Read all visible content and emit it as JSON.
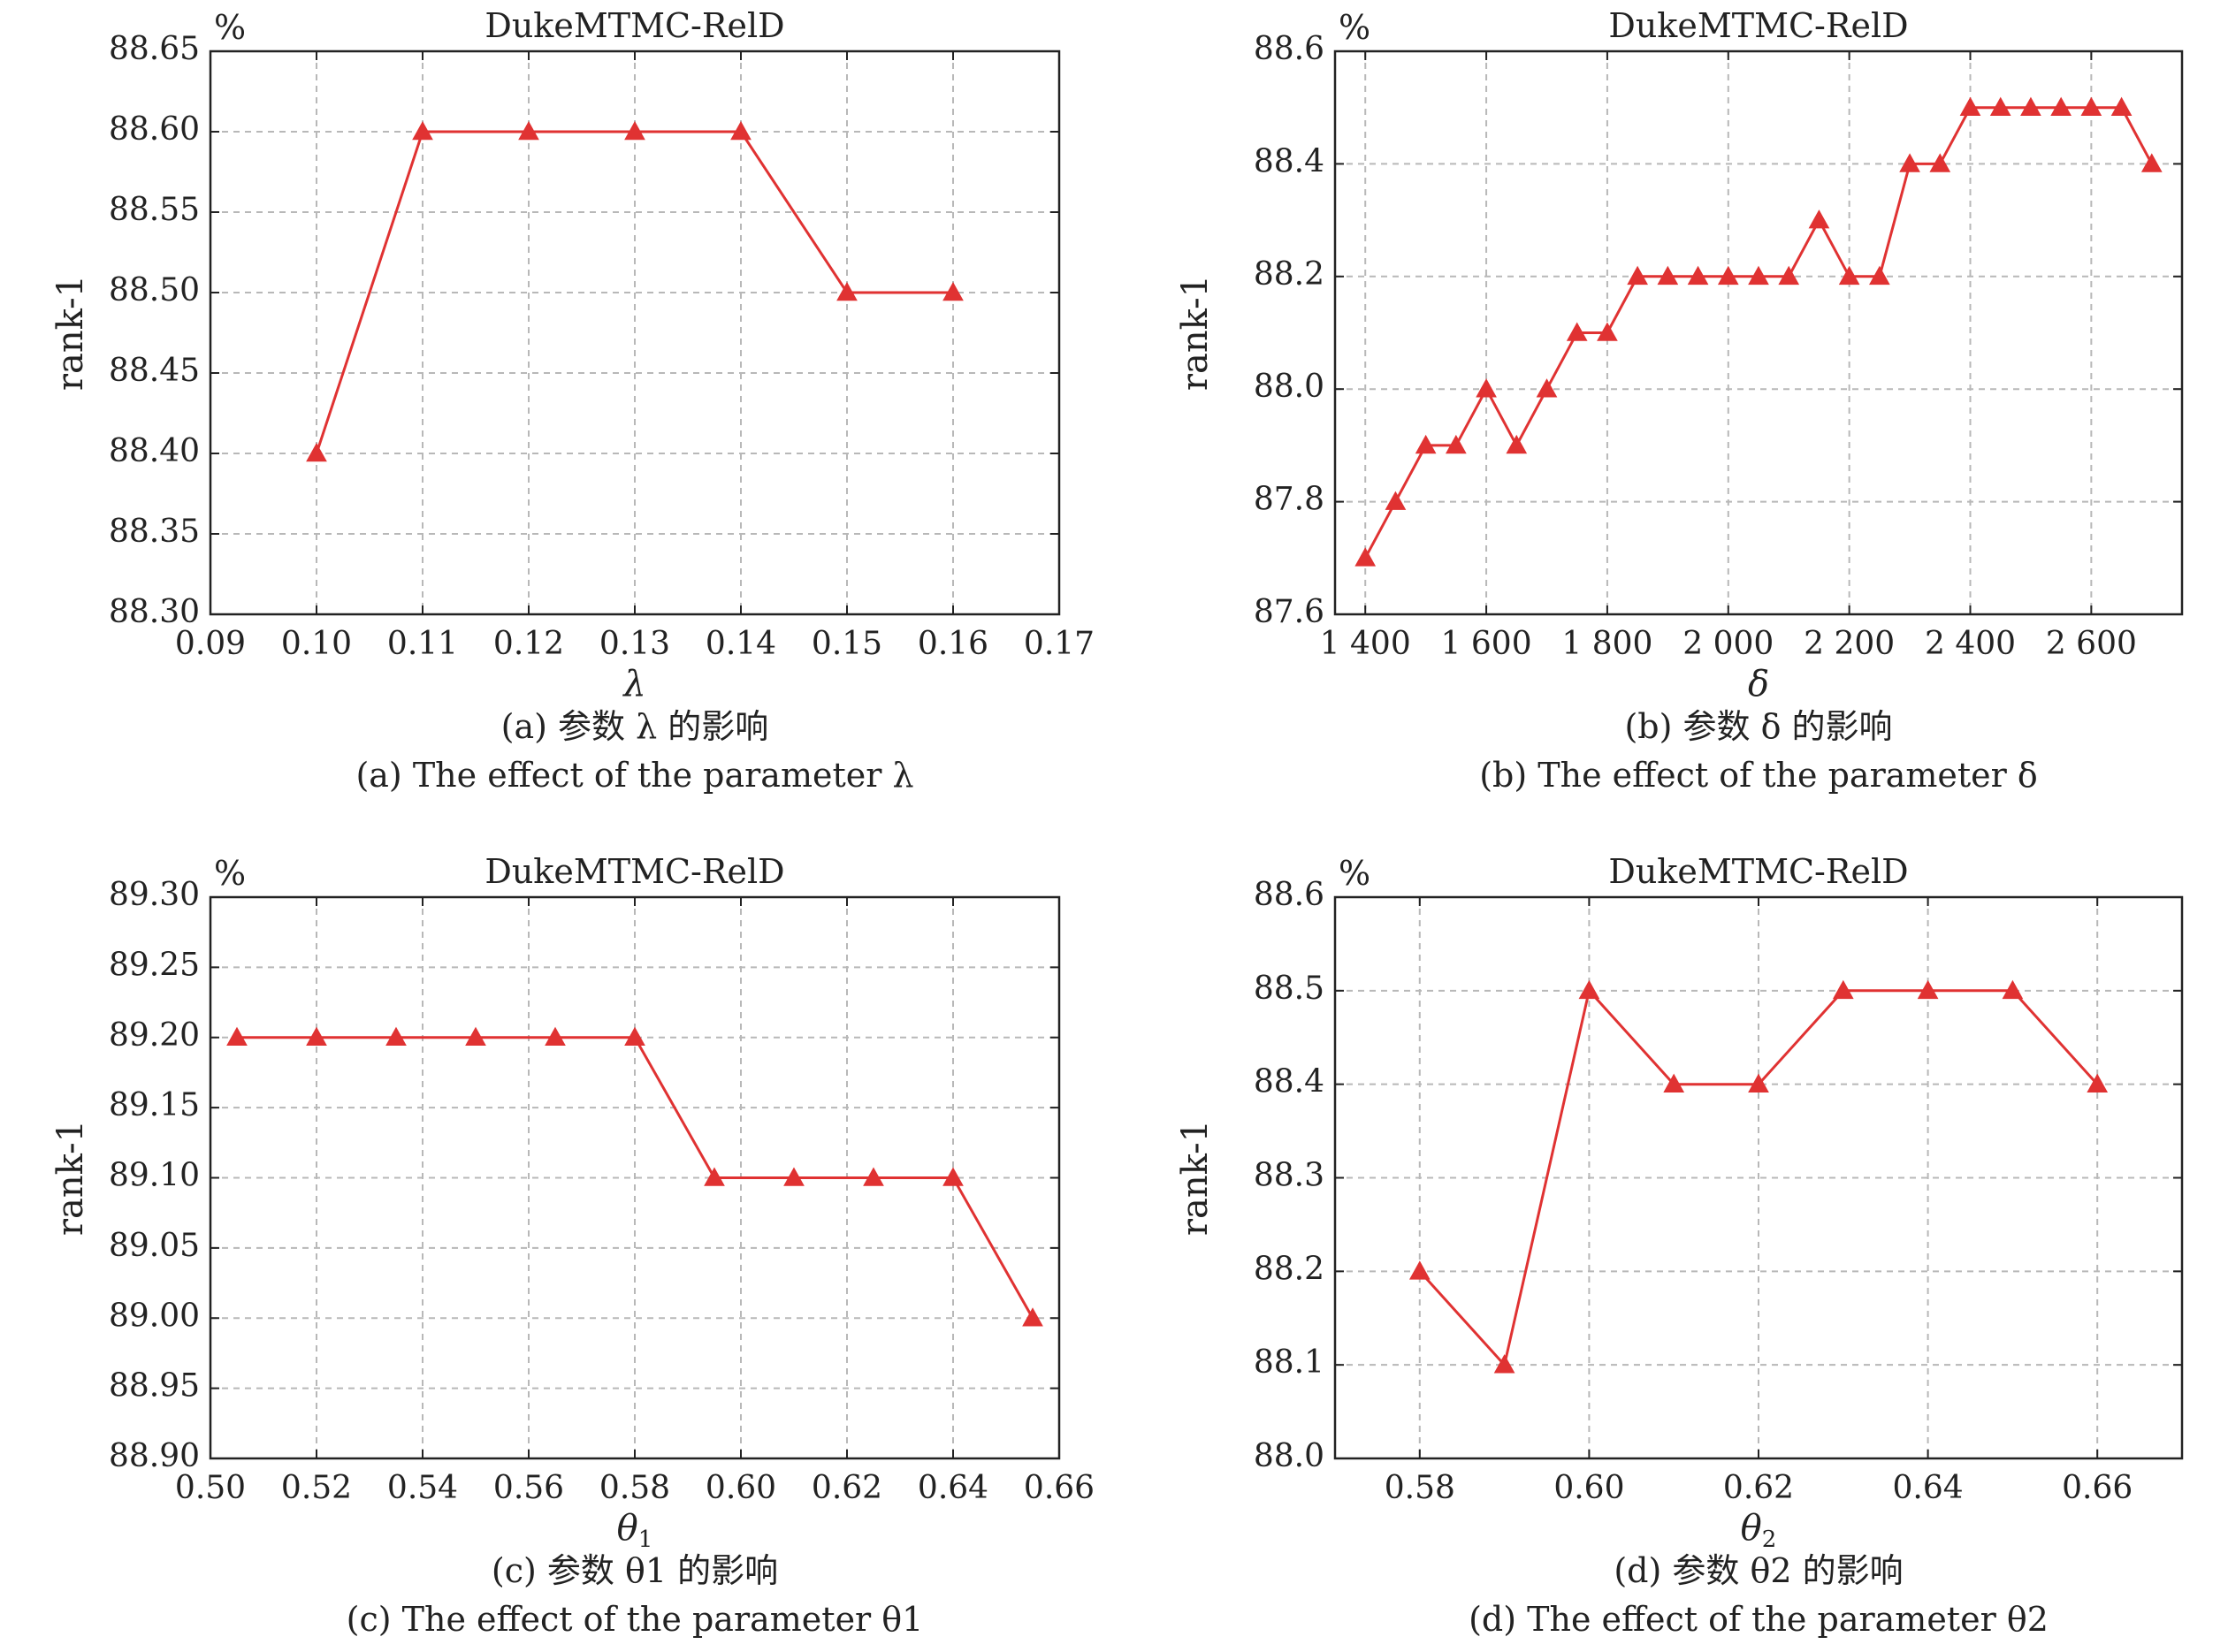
{
  "chart_data": [
    {
      "type": "line",
      "title": "DukeMTMC-RelD",
      "unit": "%",
      "xlabel": "λ",
      "ylabel": "rank-1",
      "xlim": [
        0.09,
        0.17
      ],
      "ylim": [
        88.3,
        88.65
      ],
      "xticks": [
        "0.09",
        "0.10",
        "0.11",
        "0.12",
        "0.13",
        "0.14",
        "0.15",
        "0.16",
        "0.17"
      ],
      "yticks": [
        "88.30",
        "88.35",
        "88.40",
        "88.45",
        "88.50",
        "88.55",
        "88.60",
        "88.65"
      ],
      "grid": true,
      "color": "#e03232",
      "caption_cn": "(a) 参数 λ 的影响",
      "caption_en": "(a) The effect of the parameter λ",
      "x": [
        0.1,
        0.11,
        0.12,
        0.13,
        0.14,
        0.15,
        0.16
      ],
      "y": [
        88.4,
        88.6,
        88.6,
        88.6,
        88.6,
        88.5,
        88.5
      ]
    },
    {
      "type": "line",
      "title": "DukeMTMC-RelD",
      "unit": "%",
      "xlabel": "δ",
      "ylabel": "rank-1",
      "xlim": [
        1350,
        2750
      ],
      "ylim": [
        87.6,
        88.6
      ],
      "xticks": [
        "1 400",
        "1 600",
        "1 800",
        "2 000",
        "2 200",
        "2 400",
        "2 600"
      ],
      "yticks": [
        "87.6",
        "87.8",
        "88.0",
        "88.2",
        "88.4",
        "88.6"
      ],
      "grid": true,
      "color": "#e03232",
      "caption_cn": "(b) 参数 δ 的影响",
      "caption_en": "(b) The effect of the parameter δ",
      "x": [
        1400,
        1450,
        1500,
        1550,
        1600,
        1650,
        1700,
        1750,
        1800,
        1850,
        1900,
        1950,
        2000,
        2050,
        2100,
        2150,
        2200,
        2250,
        2300,
        2350,
        2400,
        2450,
        2500,
        2550,
        2600,
        2650,
        2700
      ],
      "y": [
        87.7,
        87.8,
        87.9,
        87.9,
        88.0,
        87.9,
        88.0,
        88.1,
        88.1,
        88.2,
        88.2,
        88.2,
        88.2,
        88.2,
        88.2,
        88.3,
        88.2,
        88.2,
        88.4,
        88.4,
        88.5,
        88.5,
        88.5,
        88.5,
        88.5,
        88.5,
        88.4
      ]
    },
    {
      "type": "line",
      "title": "DukeMTMC-RelD",
      "unit": "%",
      "xlabel": "θ1",
      "ylabel": "rank-1",
      "xlim": [
        0.5,
        0.66
      ],
      "ylim": [
        88.9,
        89.3
      ],
      "xticks": [
        "0.50",
        "0.52",
        "0.54",
        "0.56",
        "0.58",
        "0.60",
        "0.62",
        "0.64",
        "0.66"
      ],
      "yticks": [
        "88.90",
        "88.95",
        "89.00",
        "89.05",
        "89.10",
        "89.15",
        "89.20",
        "89.25",
        "89.30"
      ],
      "grid": true,
      "color": "#e03232",
      "caption_cn": "(c) 参数 θ1 的影响",
      "caption_en": "(c) The effect of the parameter θ1",
      "x": [
        0.505,
        0.52,
        0.535,
        0.55,
        0.565,
        0.58,
        0.595,
        0.61,
        0.625,
        0.64,
        0.655
      ],
      "y": [
        89.2,
        89.2,
        89.2,
        89.2,
        89.2,
        89.2,
        89.1,
        89.1,
        89.1,
        89.1,
        89.0
      ]
    },
    {
      "type": "line",
      "title": "DukeMTMC-RelD",
      "unit": "%",
      "xlabel": "θ2",
      "ylabel": "rank-1",
      "xlim": [
        0.57,
        0.67
      ],
      "ylim": [
        88.0,
        88.6
      ],
      "xticks": [
        "0.58",
        "0.60",
        "0.62",
        "0.64",
        "0.66"
      ],
      "yticks": [
        "88.0",
        "88.1",
        "88.2",
        "88.3",
        "88.4",
        "88.5",
        "88.6"
      ],
      "grid": true,
      "color": "#e03232",
      "caption_cn": "(d) 参数 θ2 的影响",
      "caption_en": "(d) The effect of the parameter θ2",
      "x": [
        0.58,
        0.59,
        0.6,
        0.61,
        0.62,
        0.63,
        0.64,
        0.65,
        0.66
      ],
      "y": [
        88.2,
        88.1,
        88.5,
        88.4,
        88.4,
        88.5,
        88.5,
        88.5,
        88.4
      ]
    }
  ]
}
